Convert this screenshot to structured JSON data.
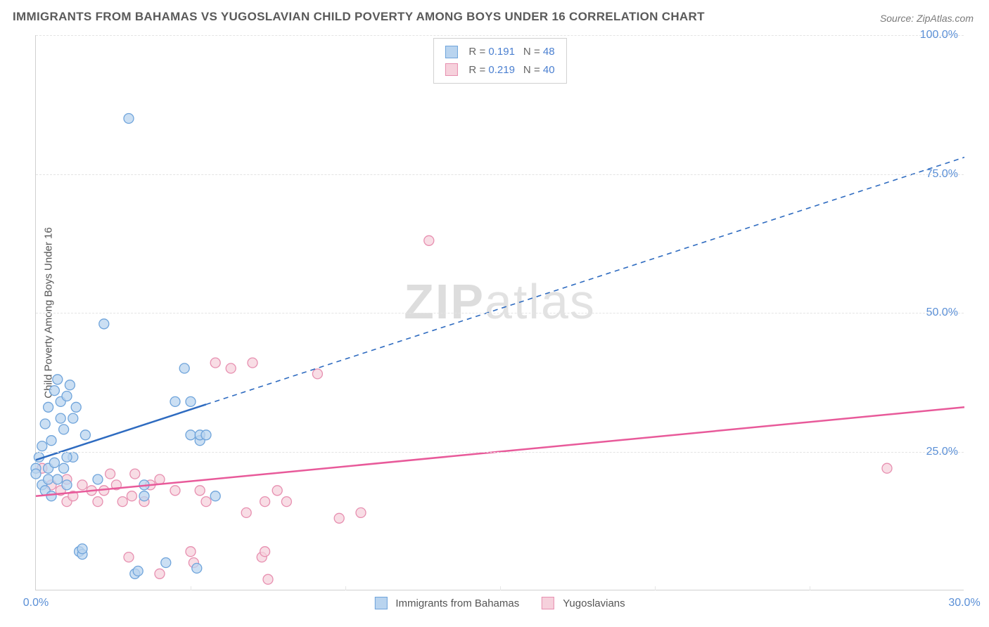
{
  "title": "IMMIGRANTS FROM BAHAMAS VS YUGOSLAVIAN CHILD POVERTY AMONG BOYS UNDER 16 CORRELATION CHART",
  "source": "Source: ZipAtlas.com",
  "watermark_a": "ZIP",
  "watermark_b": "atlas",
  "chart": {
    "type": "scatter",
    "xlim": [
      0,
      30
    ],
    "ylim": [
      0,
      100
    ],
    "xtick_labels": [
      "0.0%",
      "30.0%"
    ],
    "xtick_positions": [
      0,
      30
    ],
    "ytick_labels": [
      "25.0%",
      "50.0%",
      "75.0%",
      "100.0%"
    ],
    "ytick_positions": [
      25,
      50,
      75,
      100
    ],
    "x_minor_ticks": [
      5,
      10,
      15,
      20,
      25
    ],
    "ylabel": "Child Poverty Among Boys Under 16",
    "background_color": "#ffffff",
    "grid_color": "#e4e4e4",
    "series": [
      {
        "name": "Immigrants from Bahamas",
        "legend_label": "Immigrants from Bahamas",
        "R": 0.191,
        "N": 48,
        "marker_color_fill": "#b9d4ef",
        "marker_color_stroke": "#6fa4db",
        "marker_radius": 7,
        "line_color": "#2e6bc0",
        "line_width": 2.5,
        "trend_solid": {
          "x1": 0,
          "y1": 23.5,
          "x2": 5.5,
          "y2": 33.5
        },
        "trend_dashed": {
          "x1": 5.5,
          "y1": 33.5,
          "x2": 30,
          "y2": 78
        },
        "points": [
          [
            0.0,
            22
          ],
          [
            0.0,
            21
          ],
          [
            0.1,
            24
          ],
          [
            0.2,
            19
          ],
          [
            0.2,
            26
          ],
          [
            0.3,
            18
          ],
          [
            0.3,
            30
          ],
          [
            0.4,
            20
          ],
          [
            0.4,
            22
          ],
          [
            0.4,
            33
          ],
          [
            0.5,
            17
          ],
          [
            0.5,
            27
          ],
          [
            0.6,
            23
          ],
          [
            0.6,
            36
          ],
          [
            0.7,
            38
          ],
          [
            0.7,
            20
          ],
          [
            0.8,
            31
          ],
          [
            0.8,
            34
          ],
          [
            0.9,
            29
          ],
          [
            0.9,
            22
          ],
          [
            1.0,
            19
          ],
          [
            1.0,
            35
          ],
          [
            1.1,
            37
          ],
          [
            1.2,
            24
          ],
          [
            1.2,
            31
          ],
          [
            1.3,
            33
          ],
          [
            1.4,
            7
          ],
          [
            1.5,
            6.5
          ],
          [
            1.5,
            7.5
          ],
          [
            1.6,
            28
          ],
          [
            2.0,
            20
          ],
          [
            2.2,
            48
          ],
          [
            3.0,
            85
          ],
          [
            3.2,
            3
          ],
          [
            3.3,
            3.5
          ],
          [
            3.5,
            19
          ],
          [
            3.5,
            17
          ],
          [
            4.2,
            5
          ],
          [
            4.5,
            34
          ],
          [
            4.8,
            40
          ],
          [
            5.0,
            28
          ],
          [
            5.0,
            34
          ],
          [
            5.2,
            4
          ],
          [
            5.3,
            27
          ],
          [
            5.3,
            28
          ],
          [
            5.5,
            28
          ],
          [
            5.8,
            17
          ],
          [
            1.0,
            24
          ]
        ]
      },
      {
        "name": "Yugoslavians",
        "legend_label": "Yugoslavians",
        "R": 0.219,
        "N": 40,
        "marker_color_fill": "#f6d1dc",
        "marker_color_stroke": "#e78fb0",
        "marker_radius": 7,
        "line_color": "#e85a9a",
        "line_width": 2.5,
        "trend_solid": {
          "x1": 0,
          "y1": 17,
          "x2": 30,
          "y2": 33
        },
        "points": [
          [
            0.2,
            22
          ],
          [
            0.5,
            19
          ],
          [
            0.8,
            18
          ],
          [
            1.0,
            16
          ],
          [
            1.0,
            20
          ],
          [
            1.2,
            17
          ],
          [
            1.5,
            19
          ],
          [
            1.8,
            18
          ],
          [
            2.0,
            16
          ],
          [
            2.2,
            18
          ],
          [
            2.4,
            21
          ],
          [
            2.6,
            19
          ],
          [
            2.8,
            16
          ],
          [
            3.0,
            6
          ],
          [
            3.1,
            17
          ],
          [
            3.2,
            21
          ],
          [
            3.5,
            16
          ],
          [
            3.7,
            19
          ],
          [
            4.0,
            3
          ],
          [
            4.0,
            20
          ],
          [
            4.5,
            18
          ],
          [
            5.0,
            7
          ],
          [
            5.1,
            5
          ],
          [
            5.3,
            18
          ],
          [
            5.5,
            16
          ],
          [
            5.8,
            41
          ],
          [
            6.3,
            40
          ],
          [
            6.8,
            14
          ],
          [
            7.0,
            41
          ],
          [
            7.3,
            6
          ],
          [
            7.4,
            16
          ],
          [
            7.4,
            7
          ],
          [
            7.5,
            2
          ],
          [
            7.8,
            18
          ],
          [
            8.1,
            16
          ],
          [
            9.1,
            39
          ],
          [
            9.8,
            13
          ],
          [
            10.5,
            14
          ],
          [
            12.7,
            63
          ],
          [
            27.5,
            22
          ]
        ]
      }
    ],
    "legend_top": {
      "R_label": "R",
      "N_label": "N",
      "eq": " = "
    }
  }
}
